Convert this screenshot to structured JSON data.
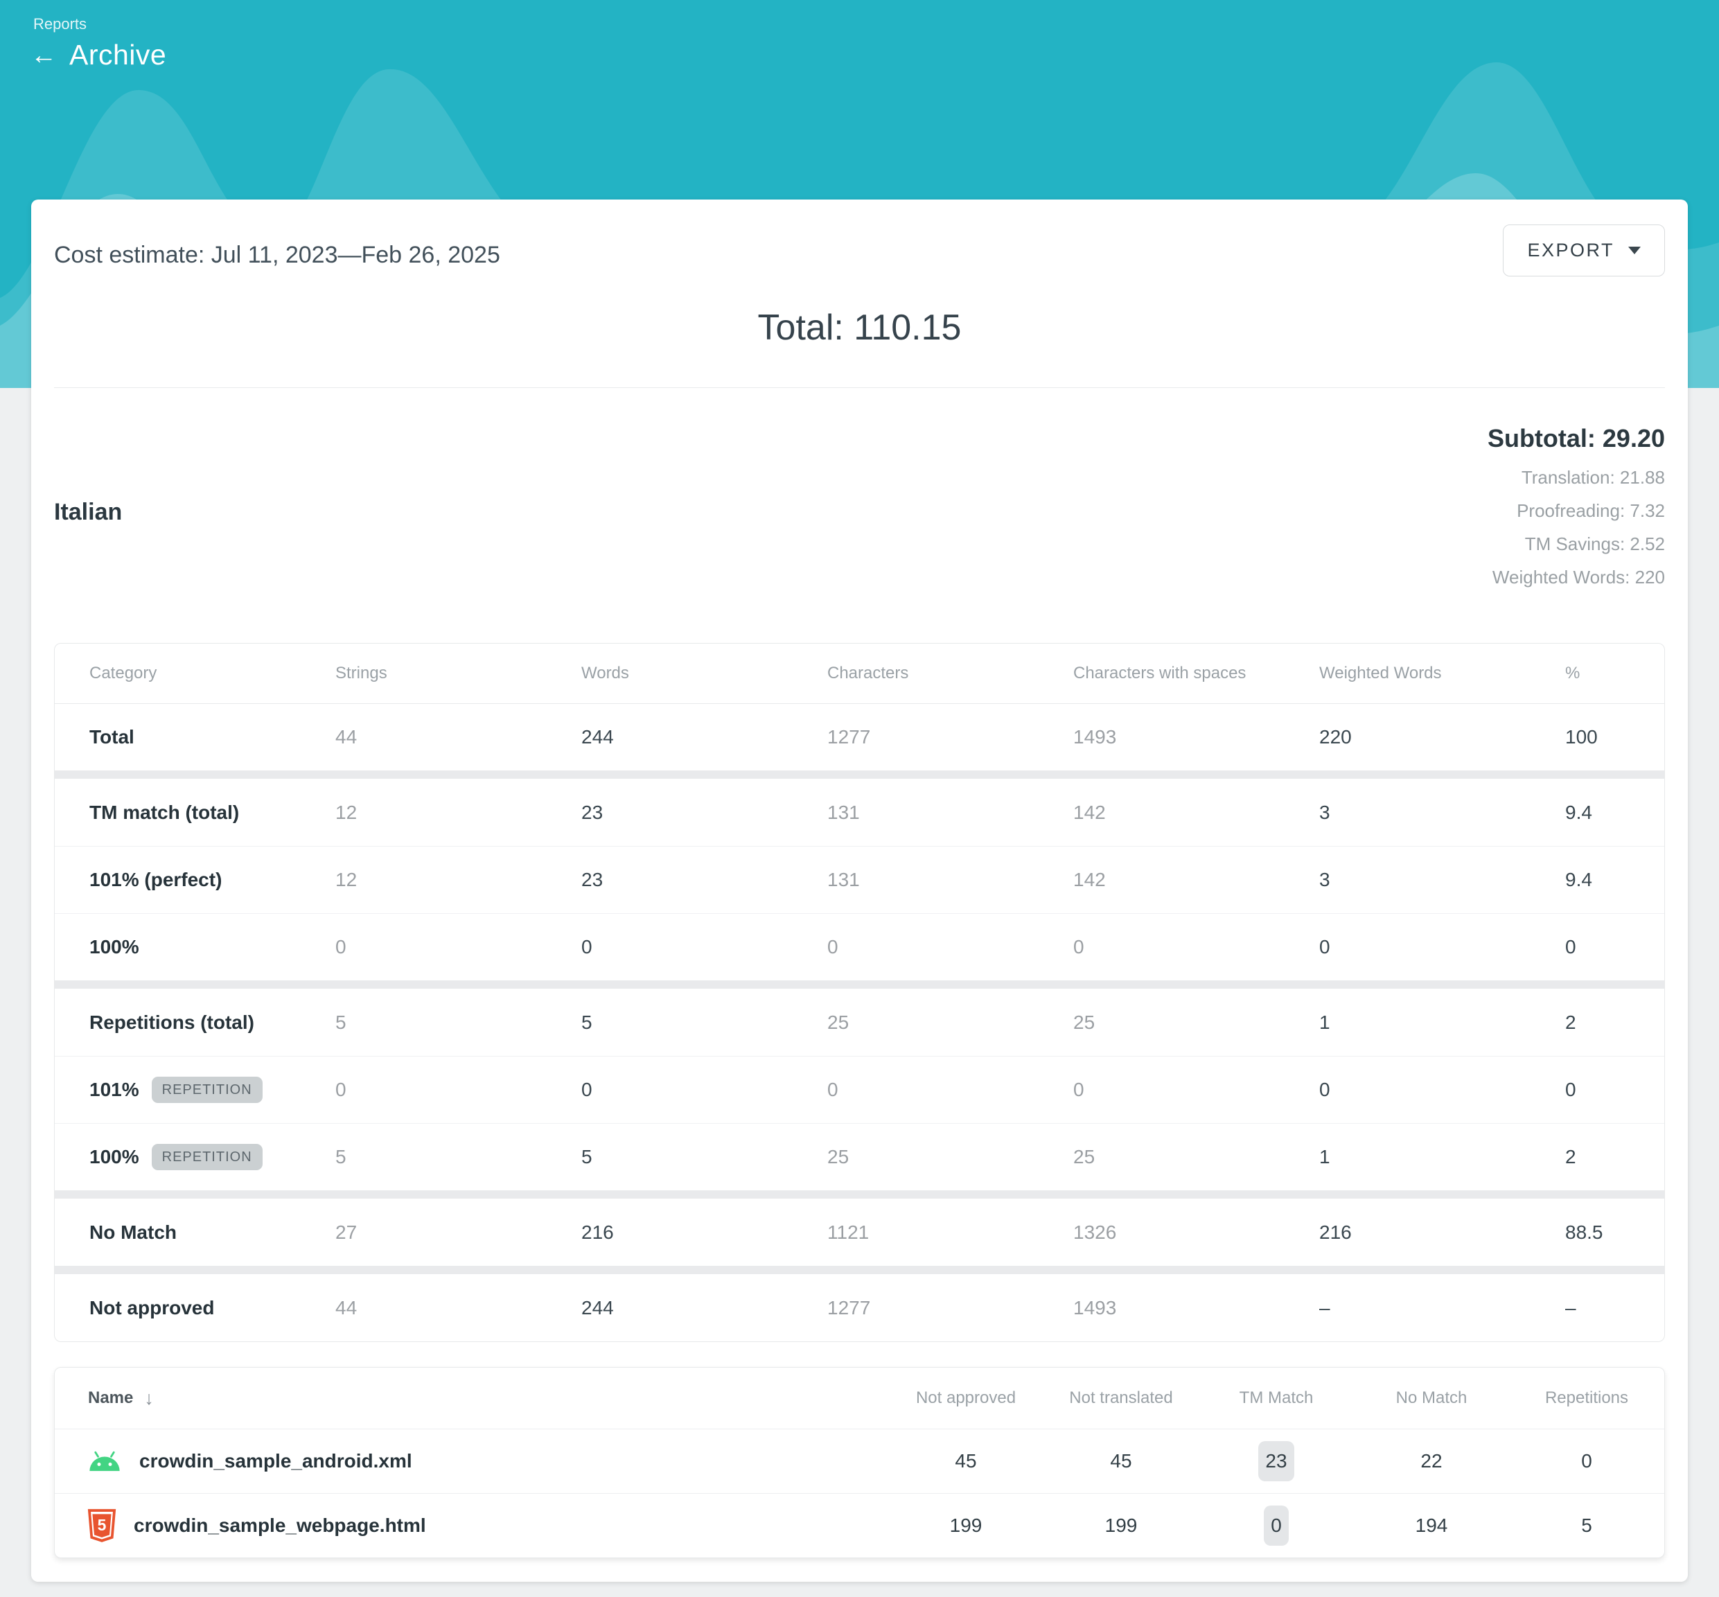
{
  "hero": {
    "breadcrumb": "Reports",
    "back_arrow": "←",
    "title": "Archive",
    "teal": "#23b3c4"
  },
  "report": {
    "heading": "Cost estimate: Jul 11, 2023—Feb 26, 2025",
    "export_button": "EXPORT",
    "total": "Total: 110.15"
  },
  "language": {
    "name": "Italian",
    "subtotal": "Subtotal: 29.20",
    "breakdown": [
      "Translation: 21.88",
      "Proofreading: 7.32",
      "TM Savings: 2.52",
      "Weighted Words: 220"
    ]
  },
  "cost_table": {
    "columns": [
      "Category",
      "Strings",
      "Words",
      "Characters",
      "Characters with spaces",
      "Weighted Words",
      "%"
    ],
    "rows": [
      {
        "category": "Total",
        "group_start": false,
        "badge": null,
        "values": [
          "44",
          "244",
          "1277",
          "1493",
          "220",
          "100"
        ]
      },
      {
        "category": "TM match (total)",
        "group_start": true,
        "badge": null,
        "values": [
          "12",
          "23",
          "131",
          "142",
          "3",
          "9.4"
        ]
      },
      {
        "category": "101% (perfect)",
        "group_start": false,
        "badge": null,
        "values": [
          "12",
          "23",
          "131",
          "142",
          "3",
          "9.4"
        ]
      },
      {
        "category": "100%",
        "group_start": false,
        "badge": null,
        "values": [
          "0",
          "0",
          "0",
          "0",
          "0",
          "0"
        ]
      },
      {
        "category": "Repetitions (total)",
        "group_start": true,
        "badge": null,
        "values": [
          "5",
          "5",
          "25",
          "25",
          "1",
          "2"
        ]
      },
      {
        "category": "101%",
        "group_start": false,
        "badge": "REPETITION",
        "values": [
          "0",
          "0",
          "0",
          "0",
          "0",
          "0"
        ]
      },
      {
        "category": "100%",
        "group_start": false,
        "badge": "REPETITION",
        "values": [
          "5",
          "5",
          "25",
          "25",
          "1",
          "2"
        ]
      },
      {
        "category": "No Match",
        "group_start": true,
        "badge": null,
        "values": [
          "27",
          "216",
          "1121",
          "1326",
          "216",
          "88.5"
        ]
      },
      {
        "category": "Not approved",
        "group_start": true,
        "badge": null,
        "values": [
          "44",
          "244",
          "1277",
          "1493",
          "–",
          "–"
        ]
      }
    ],
    "gray_value_columns": [
      0,
      2,
      3
    ],
    "dark_value_columns": [
      1,
      4,
      5
    ]
  },
  "files_table": {
    "columns": [
      "Name",
      "Not approved",
      "Not translated",
      "TM Match",
      "No Match",
      "Repetitions"
    ],
    "sort_icon": "↓",
    "rows": [
      {
        "icon": "android",
        "name": "crowdin_sample_android.xml",
        "values": [
          "45",
          "45",
          "23",
          "22",
          "0"
        ]
      },
      {
        "icon": "html5",
        "name": "crowdin_sample_webpage.html",
        "values": [
          "199",
          "199",
          "0",
          "194",
          "5"
        ]
      }
    ],
    "badge_column_index": 2
  },
  "colors": {
    "accent_teal": "#23b3c4",
    "android_green": "#43d483",
    "html5_orange": "#e8542f",
    "badge_gray": "#cbd0d2"
  }
}
